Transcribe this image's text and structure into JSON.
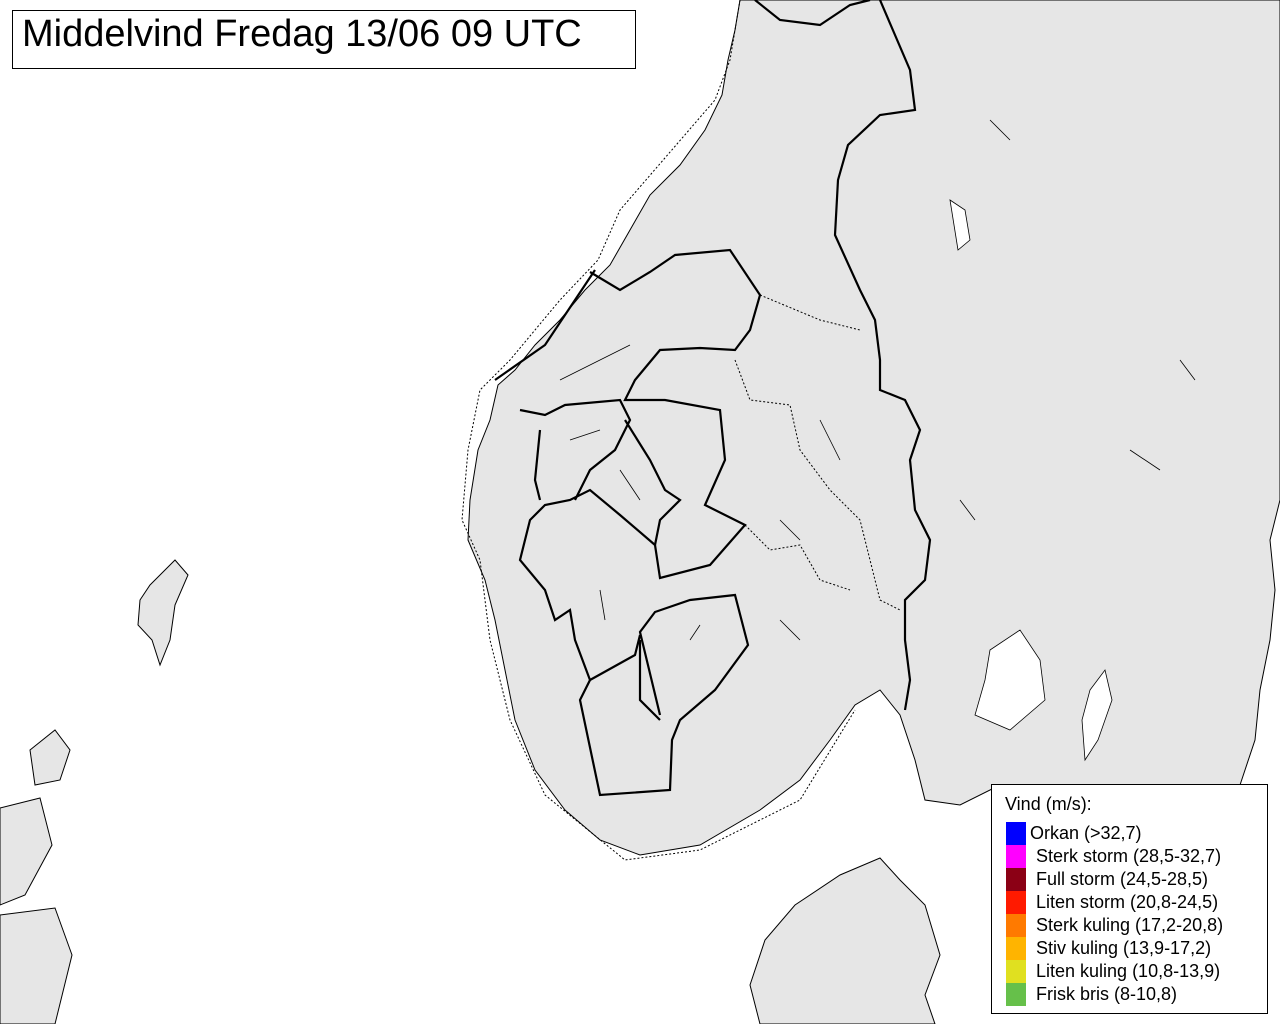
{
  "title": "Middelvind Fredag 13/06 09 UTC",
  "legend": {
    "title": "Vind (m/s):",
    "entries": [
      {
        "label": "Orkan (>32,7)",
        "color": "#0000ff"
      },
      {
        "label": "Sterk storm (28,5-32,7)",
        "color": "#ff00ff"
      },
      {
        "label": "Full storm (24,5-28,5)",
        "color": "#8b0015"
      },
      {
        "label": "Liten storm (20,8-24,5)",
        "color": "#ff1a00"
      },
      {
        "label": "Sterk kuling (17,2-20,8)",
        "color": "#ff7a00"
      },
      {
        "label": "Stiv kuling (13,9-17,2)",
        "color": "#ffb400"
      },
      {
        "label": "Liten kuling (10,8-13,9)",
        "color": "#e0e020"
      },
      {
        "label": "Frisk bris (8-10,8)",
        "color": "#66c04a"
      }
    ]
  }
}
